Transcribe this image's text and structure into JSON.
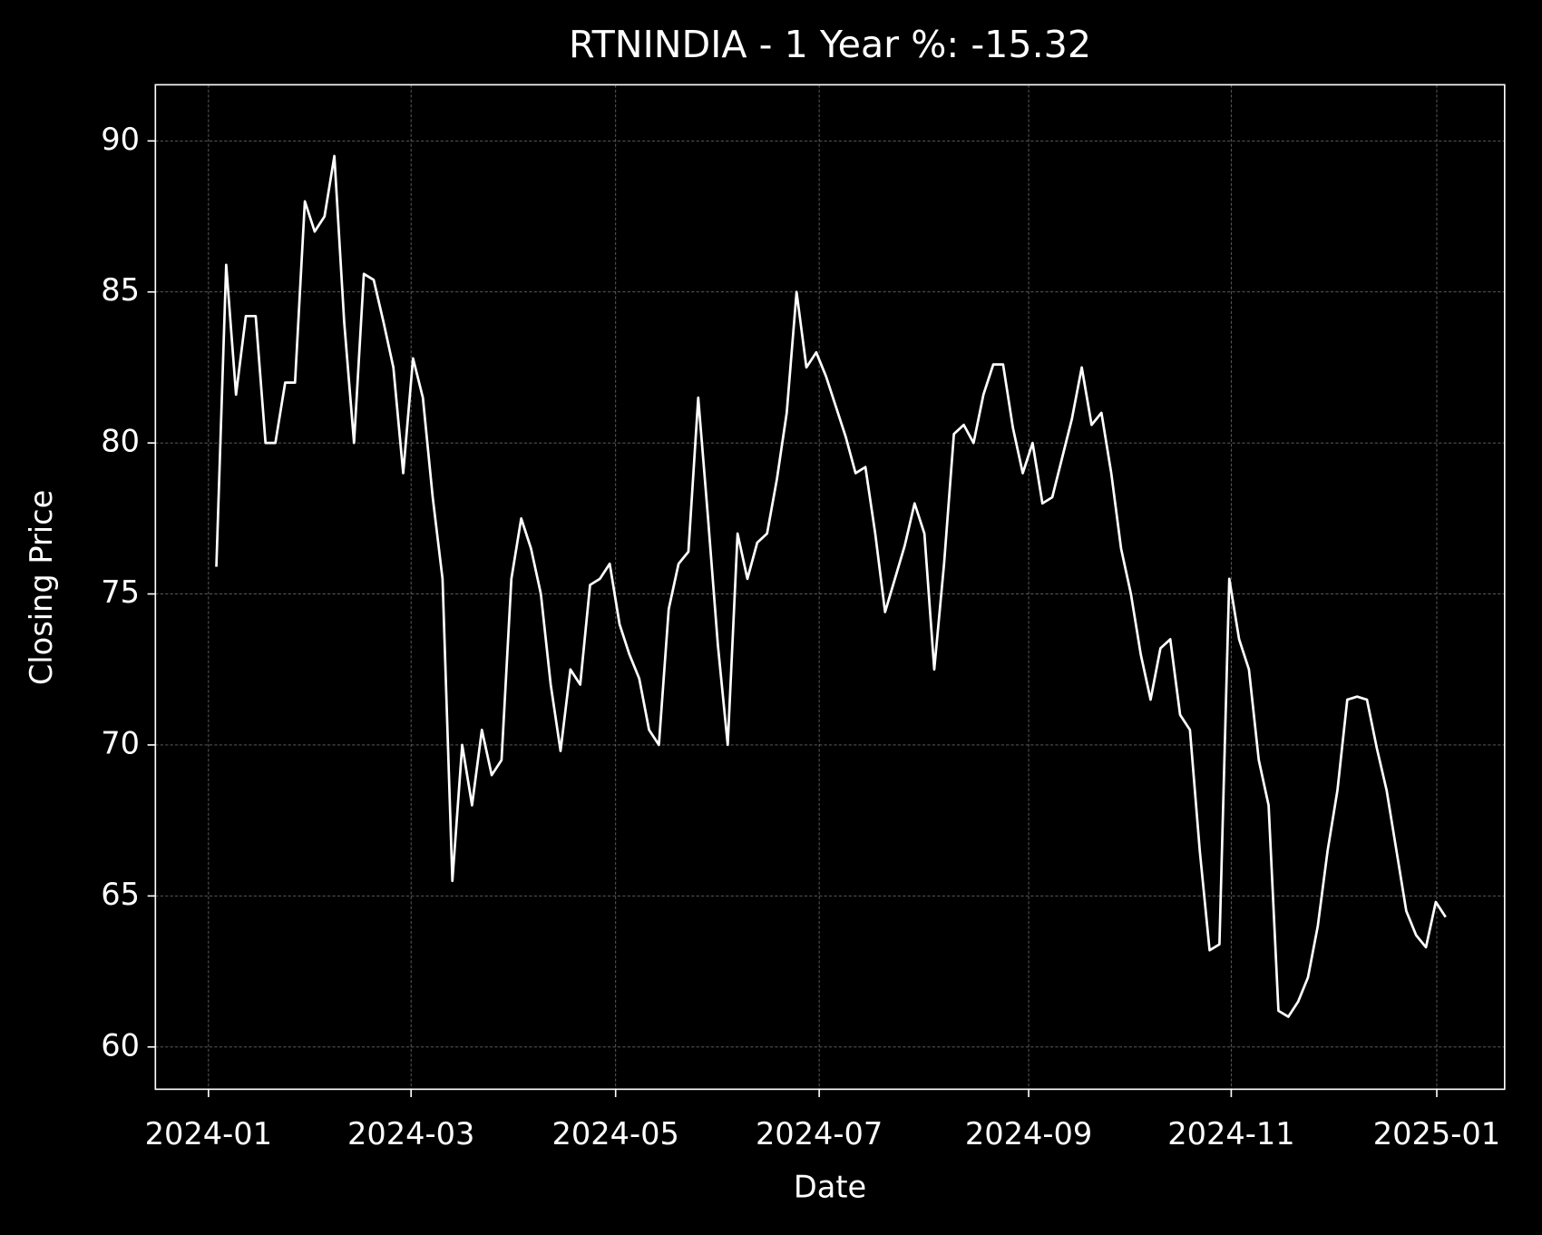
{
  "chart_data": {
    "type": "line",
    "title": "RTNINDIA - 1 Year %: -15.32",
    "x_label": "Date",
    "y_label": "Closing Price",
    "series": [
      {
        "name": "RTNINDIA",
        "color": "#ffffff",
        "values": [
          75.9,
          85.9,
          81.6,
          84.2,
          84.2,
          80,
          80,
          82,
          82,
          88,
          87,
          87.5,
          89.5,
          84,
          80,
          85.6,
          85.4,
          84,
          82.5,
          79,
          82.8,
          81.5,
          78.2,
          75.5,
          65.5,
          70,
          68,
          70.5,
          69,
          69.5,
          75.5,
          77.5,
          76.5,
          75,
          72,
          69.8,
          72.5,
          72,
          75.3,
          75.5,
          76,
          74,
          73,
          72.2,
          70.5,
          70,
          74.5,
          76,
          76.4,
          81.5,
          77.5,
          73.3,
          70,
          77,
          75.5,
          76.7,
          77,
          78.8,
          81,
          85,
          82.5,
          83,
          82.2,
          81.2,
          80.2,
          79,
          79.2,
          77,
          74.4,
          75.5,
          76.6,
          78,
          77,
          72.5,
          76,
          80.3,
          80.6,
          80,
          81.6,
          82.6,
          82.6,
          80.5,
          79,
          80,
          78,
          78.2,
          79.5,
          80.8,
          82.5,
          80.6,
          81,
          79,
          76.5,
          75,
          73,
          71.5,
          73.2,
          73.5,
          71,
          70.5,
          66.5,
          63.2,
          63.4,
          75.5,
          73.5,
          72.5,
          69.5,
          68,
          61.2,
          61,
          61.5,
          62.3,
          64,
          66.5,
          68.5,
          71.5,
          71.6,
          71.5,
          69.9,
          68.5,
          66.5,
          64.5,
          63.7,
          63.3,
          64.8,
          64.3
        ]
      }
    ],
    "xlim": [
      -6.2,
      131
    ],
    "xticks": [
      {
        "value": -0.8,
        "label": "2024-01"
      },
      {
        "value": 19.8,
        "label": "2024-03"
      },
      {
        "value": 40.6,
        "label": "2024-05"
      },
      {
        "value": 61.3,
        "label": "2024-07"
      },
      {
        "value": 82.6,
        "label": "2024-09"
      },
      {
        "value": 103.2,
        "label": "2024-11"
      },
      {
        "value": 124.1,
        "label": "2025-01"
      }
    ],
    "ylim": [
      58.6,
      91.86
    ],
    "yticks": [
      60,
      65,
      70,
      75,
      80,
      85,
      90
    ],
    "grid": true
  }
}
